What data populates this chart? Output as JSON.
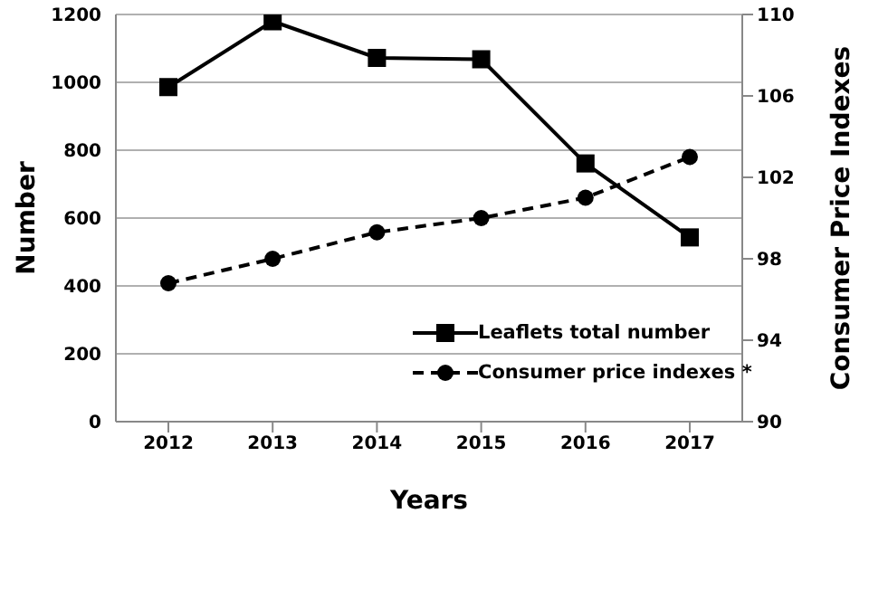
{
  "chart_data": {
    "type": "line",
    "xlabel": "Years",
    "ylabel": "Number",
    "y2label": "Consumer Price Indexes",
    "categories": [
      "2012",
      "2013",
      "2014",
      "2015",
      "2016",
      "2017"
    ],
    "series": [
      {
        "name": "Leaflets total number",
        "color": "#000000",
        "values": [
          986,
          1180,
          1072,
          1068,
          761,
          543
        ],
        "marker": "square",
        "line_style": "solid"
      },
      {
        "name": "Consumer price indexes *",
        "color": "#000000",
        "values": [
          96.8,
          98.0,
          99.3,
          100.0,
          101.0,
          103.0
        ],
        "axis": "y2",
        "marker": "circle",
        "line_style": "dashed"
      }
    ],
    "ylim": [
      0,
      1200
    ],
    "yticks": [
      0,
      200,
      400,
      600,
      800,
      1000,
      1200
    ],
    "y2lim": [
      90,
      110
    ],
    "y2ticks": [
      90,
      94,
      98,
      102,
      106,
      110
    ],
    "grid": "y",
    "legend": "bottom right"
  }
}
